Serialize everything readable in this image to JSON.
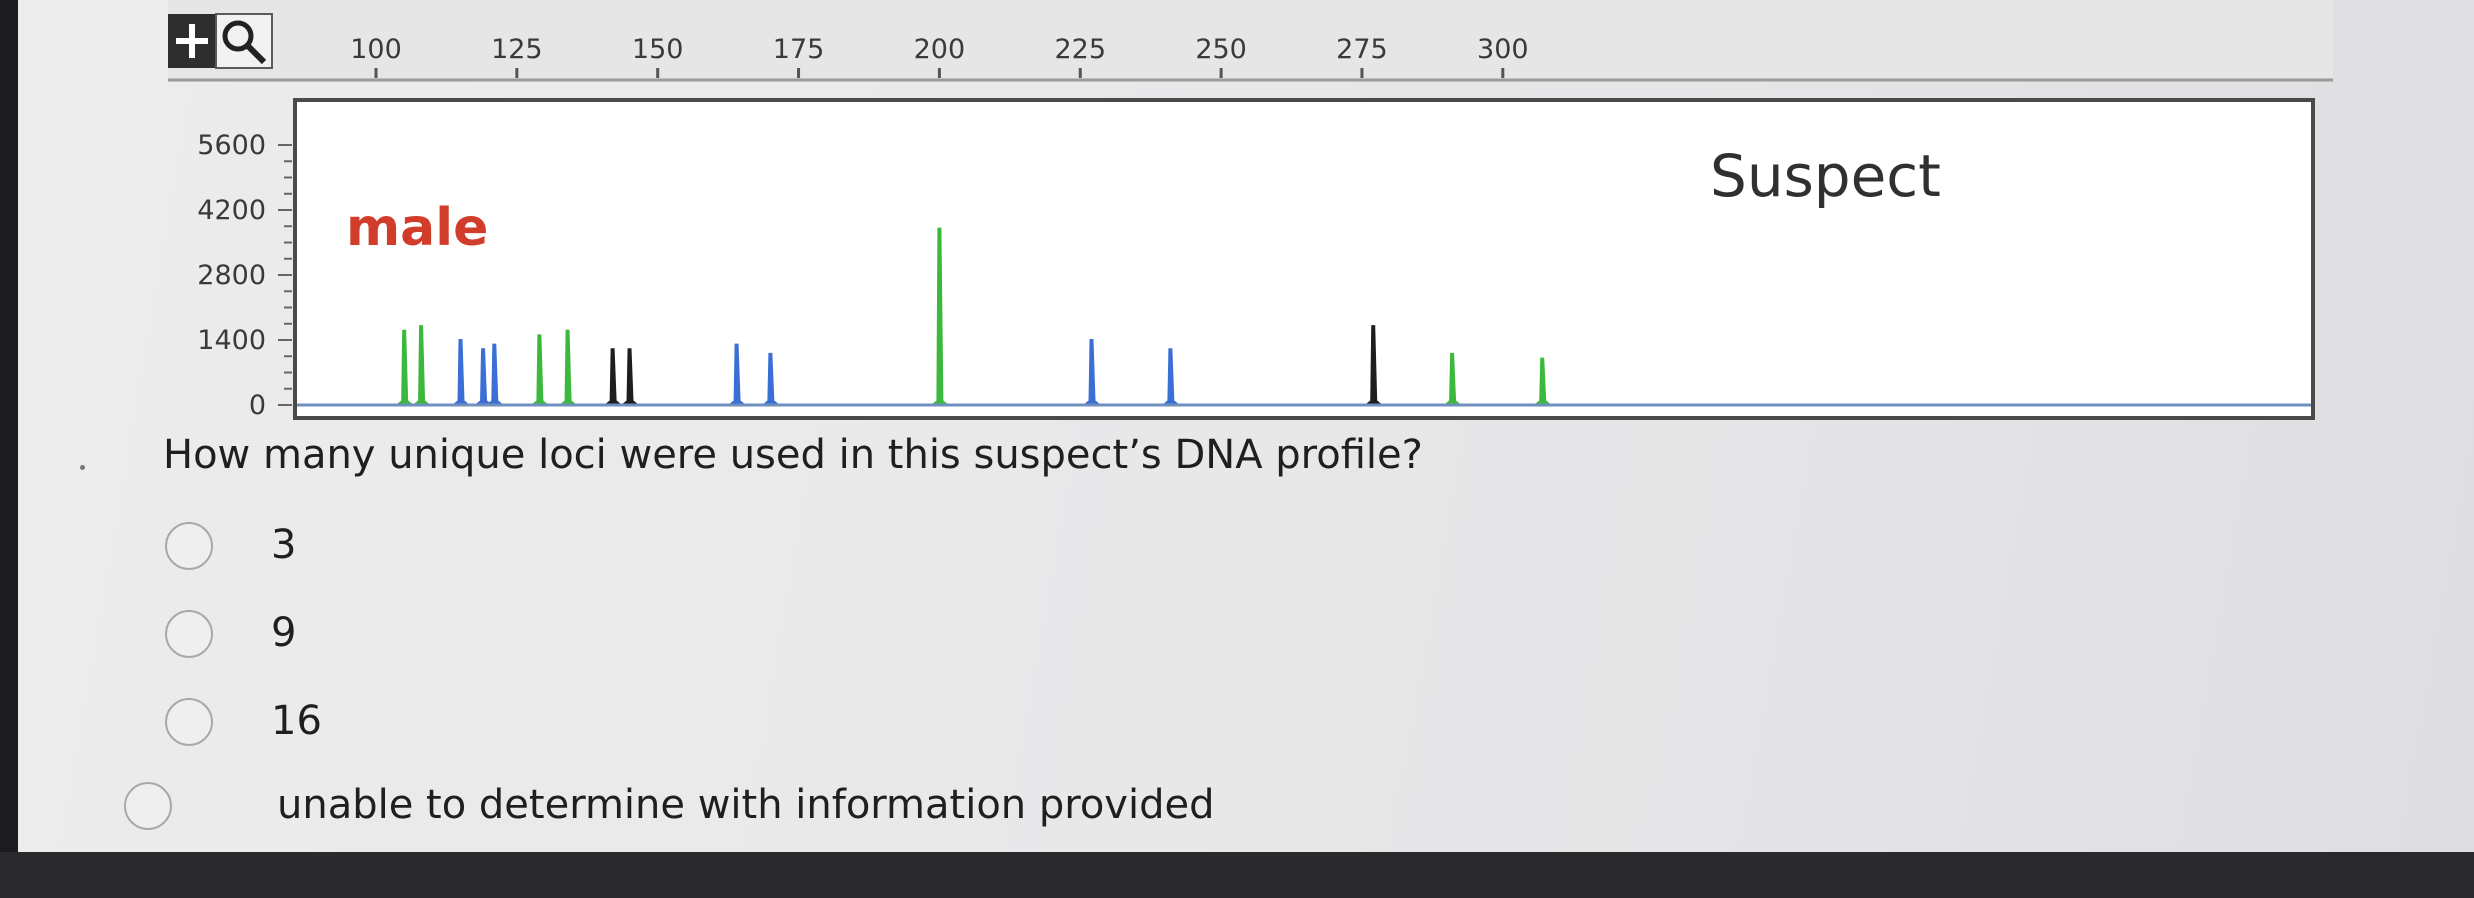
{
  "egram": {
    "size_axis": [
      "100",
      "125",
      "150",
      "175",
      "200",
      "225",
      "250",
      "275",
      "300"
    ],
    "rfu_axis": [
      "5600",
      "4200",
      "2800",
      "1400",
      "0"
    ],
    "sample_label": "male",
    "profile_label": "Suspect",
    "colors": {
      "green": "#3cb83c",
      "blue": "#3b6fd6",
      "black": "#1e1e1e",
      "red_label": "#d23c2a",
      "baseline": "#6f8fbf"
    },
    "peaks": [
      {
        "bp": 105,
        "rfu": 1600,
        "dye": "green"
      },
      {
        "bp": 108,
        "rfu": 1700,
        "dye": "green"
      },
      {
        "bp": 115,
        "rfu": 1400,
        "dye": "blue"
      },
      {
        "bp": 119,
        "rfu": 1200,
        "dye": "blue"
      },
      {
        "bp": 121,
        "rfu": 1300,
        "dye": "blue"
      },
      {
        "bp": 129,
        "rfu": 1500,
        "dye": "green"
      },
      {
        "bp": 134,
        "rfu": 1600,
        "dye": "green"
      },
      {
        "bp": 142,
        "rfu": 1200,
        "dye": "black"
      },
      {
        "bp": 145,
        "rfu": 1200,
        "dye": "black"
      },
      {
        "bp": 164,
        "rfu": 1300,
        "dye": "blue"
      },
      {
        "bp": 170,
        "rfu": 1100,
        "dye": "blue"
      },
      {
        "bp": 200,
        "rfu": 3800,
        "dye": "green"
      },
      {
        "bp": 227,
        "rfu": 1400,
        "dye": "blue"
      },
      {
        "bp": 241,
        "rfu": 1200,
        "dye": "blue"
      },
      {
        "bp": 277,
        "rfu": 1700,
        "dye": "black"
      },
      {
        "bp": 291,
        "rfu": 1100,
        "dye": "green"
      },
      {
        "bp": 307,
        "rfu": 1000,
        "dye": "green"
      }
    ]
  },
  "question": {
    "text": "How many unique loci were used in this suspect’s DNA profile?",
    "options": [
      "3",
      "9",
      "16",
      "unable to determine with information provided"
    ]
  }
}
